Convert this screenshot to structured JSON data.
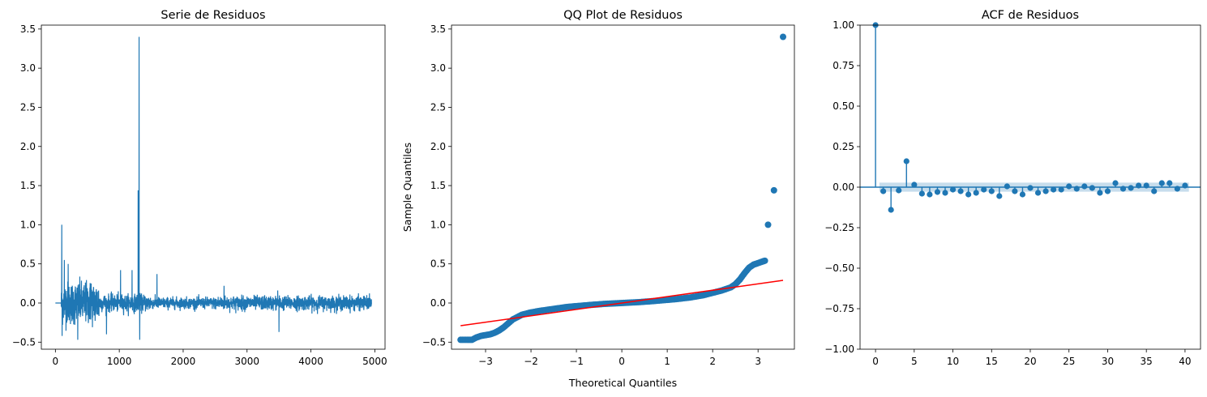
{
  "chart_data": [
    {
      "type": "line",
      "title": "Serie de Residuos",
      "xlabel": "",
      "ylabel": "",
      "xlim": [
        -220,
        5160
      ],
      "ylim": [
        -0.59,
        3.55
      ],
      "xticks": [
        0,
        1000,
        2000,
        3000,
        4000,
        5000
      ],
      "yticks": [
        -0.5,
        0.0,
        0.5,
        1.0,
        1.5,
        2.0,
        2.5,
        3.0,
        3.5
      ],
      "ytick_labels": [
        "−0.5",
        "0.0",
        "0.5",
        "1.0",
        "1.5",
        "2.0",
        "2.5",
        "3.0",
        "3.5"
      ],
      "grid": false,
      "color": "#1f77b4",
      "series_summary": {
        "n_points": 4950,
        "flat_until": 90,
        "spikes": [
          {
            "x": 100,
            "y": 1.0
          },
          {
            "x": 105,
            "y": -0.42
          },
          {
            "x": 140,
            "y": 0.55
          },
          {
            "x": 200,
            "y": 0.5
          },
          {
            "x": 350,
            "y": -0.47
          },
          {
            "x": 560,
            "y": 0.25
          },
          {
            "x": 800,
            "y": -0.4
          },
          {
            "x": 1020,
            "y": 0.42
          },
          {
            "x": 1200,
            "y": 0.42
          },
          {
            "x": 1295,
            "y": 1.44
          },
          {
            "x": 1310,
            "y": 3.4
          },
          {
            "x": 1320,
            "y": -0.47
          },
          {
            "x": 1590,
            "y": 0.37
          },
          {
            "x": 2640,
            "y": 0.22
          },
          {
            "x": 3500,
            "y": -0.37
          },
          {
            "x": 3480,
            "y": 0.16
          }
        ],
        "envelope": [
          {
            "from": 90,
            "to": 700,
            "amp": 0.3
          },
          {
            "from": 700,
            "to": 1500,
            "amp": 0.12
          },
          {
            "from": 1500,
            "to": 2500,
            "amp": 0.08
          },
          {
            "from": 2500,
            "to": 4950,
            "amp": 0.1
          }
        ]
      }
    },
    {
      "type": "scatter",
      "title": "QQ Plot de Residuos",
      "xlabel": "Theoretical Quantiles",
      "ylabel": "Sample Quantiles",
      "xlim": [
        -3.75,
        3.8
      ],
      "ylim": [
        -0.59,
        3.55
      ],
      "xticks": [
        -3,
        -2,
        -1,
        0,
        1,
        2,
        3
      ],
      "xtick_labels": [
        "−3",
        "−2",
        "−1",
        "0",
        "1",
        "2",
        "3"
      ],
      "yticks": [
        -0.5,
        0.0,
        0.5,
        1.0,
        1.5,
        2.0,
        2.5,
        3.0,
        3.5
      ],
      "ytick_labels": [
        "−0.5",
        "0.0",
        "0.5",
        "1.0",
        "1.5",
        "2.0",
        "2.5",
        "3.0",
        "3.5"
      ],
      "grid": false,
      "point_color": "#1f77b4",
      "line_color": "#ff0000",
      "reference_line": {
        "x": [
          -3.55,
          3.55
        ],
        "y": [
          -0.29,
          0.29
        ]
      },
      "points": [
        [
          -3.55,
          -0.47
        ],
        [
          -3.4,
          -0.47
        ],
        [
          -3.3,
          -0.47
        ],
        [
          -3.2,
          -0.44
        ],
        [
          -3.1,
          -0.42
        ],
        [
          -3.0,
          -0.41
        ],
        [
          -2.9,
          -0.4
        ],
        [
          -2.8,
          -0.38
        ],
        [
          -2.7,
          -0.35
        ],
        [
          -2.6,
          -0.31
        ],
        [
          -2.5,
          -0.26
        ],
        [
          -2.4,
          -0.21
        ],
        [
          -2.3,
          -0.18
        ],
        [
          -2.2,
          -0.15
        ],
        [
          -2.0,
          -0.12
        ],
        [
          -1.8,
          -0.1
        ],
        [
          -1.5,
          -0.075
        ],
        [
          -1.2,
          -0.05
        ],
        [
          -1.0,
          -0.04
        ],
        [
          -0.7,
          -0.025
        ],
        [
          -0.4,
          -0.012
        ],
        [
          0.0,
          0.0
        ],
        [
          0.4,
          0.012
        ],
        [
          0.7,
          0.025
        ],
        [
          1.0,
          0.04
        ],
        [
          1.2,
          0.05
        ],
        [
          1.5,
          0.07
        ],
        [
          1.8,
          0.1
        ],
        [
          2.0,
          0.13
        ],
        [
          2.2,
          0.16
        ],
        [
          2.4,
          0.2
        ],
        [
          2.5,
          0.24
        ],
        [
          2.6,
          0.3
        ],
        [
          2.7,
          0.38
        ],
        [
          2.8,
          0.45
        ],
        [
          2.9,
          0.49
        ],
        [
          3.0,
          0.51
        ],
        [
          3.1,
          0.53
        ],
        [
          3.15,
          0.54
        ],
        [
          3.22,
          1.0
        ],
        [
          3.35,
          1.44
        ],
        [
          3.55,
          3.4
        ]
      ]
    },
    {
      "type": "bar",
      "subtype": "stem",
      "title": "ACF de Residuos",
      "xlabel": "",
      "ylabel": "",
      "xlim": [
        -2,
        42
      ],
      "ylim": [
        -1.0,
        1.0
      ],
      "xticks": [
        0,
        5,
        10,
        15,
        20,
        25,
        30,
        35,
        40
      ],
      "yticks": [
        -1.0,
        -0.75,
        -0.5,
        -0.25,
        0.0,
        0.25,
        0.5,
        0.75,
        1.0
      ],
      "ytick_labels": [
        "−1.00",
        "−0.75",
        "−0.50",
        "−0.25",
        "0.00",
        "0.25",
        "0.50",
        "0.75",
        "1.00"
      ],
      "grid": false,
      "color": "#1f77b4",
      "confidence_band": 0.028,
      "lags": [
        0,
        1,
        2,
        3,
        4,
        5,
        6,
        7,
        8,
        9,
        10,
        11,
        12,
        13,
        14,
        15,
        16,
        17,
        18,
        19,
        20,
        21,
        22,
        23,
        24,
        25,
        26,
        27,
        28,
        29,
        30,
        31,
        32,
        33,
        34,
        35,
        36,
        37,
        38,
        39,
        40
      ],
      "values": [
        1.0,
        -0.025,
        -0.14,
        -0.02,
        0.16,
        0.015,
        -0.04,
        -0.045,
        -0.03,
        -0.035,
        -0.015,
        -0.025,
        -0.045,
        -0.035,
        -0.015,
        -0.025,
        -0.055,
        0.005,
        -0.025,
        -0.045,
        -0.005,
        -0.035,
        -0.025,
        -0.015,
        -0.015,
        0.005,
        -0.01,
        0.005,
        -0.005,
        -0.035,
        -0.025,
        0.025,
        -0.01,
        -0.005,
        0.01,
        0.01,
        -0.025,
        0.025,
        0.025,
        -0.01,
        0.01
      ]
    }
  ]
}
